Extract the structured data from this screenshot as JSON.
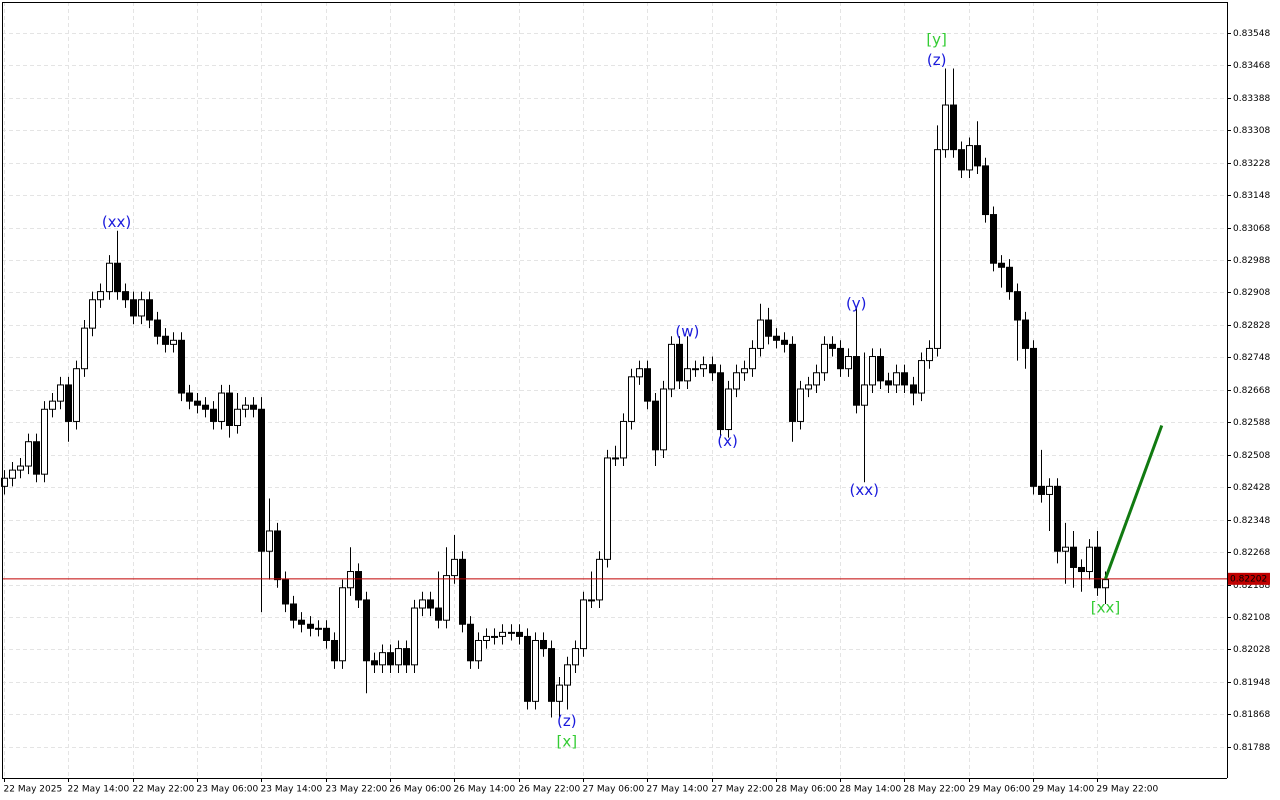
{
  "chart_data": {
    "type": "candlestick",
    "categories": [
      "22 May 2025",
      null,
      null,
      null,
      null,
      null,
      null,
      null,
      "22 May 14:00",
      null,
      null,
      null,
      null,
      null,
      null,
      null,
      "22 May 22:00",
      null,
      null,
      null,
      null,
      null,
      null,
      null,
      "23 May 06:00",
      null,
      null,
      null,
      null,
      null,
      null,
      null,
      "23 May 14:00",
      null,
      null,
      null,
      null,
      null,
      null,
      null,
      "23 May 22:00",
      null,
      null,
      null,
      null,
      null,
      null,
      null,
      "26 May 06:00",
      null,
      null,
      null,
      null,
      null,
      null,
      null,
      "26 May 14:00",
      null,
      null,
      null,
      null,
      null,
      null,
      null,
      "26 May 22:00",
      null,
      null,
      null,
      null,
      null,
      null,
      null,
      "27 May 06:00",
      null,
      null,
      null,
      null,
      null,
      null,
      null,
      "27 May 14:00",
      null,
      null,
      null,
      null,
      null,
      null,
      null,
      "27 May 22:00",
      null,
      null,
      null,
      null,
      null,
      null,
      null,
      "28 May 06:00",
      null,
      null,
      null,
      null,
      null,
      null,
      null,
      "28 May 14:00",
      null,
      null,
      null,
      null,
      null,
      null,
      null,
      "28 May 22:00",
      null,
      null,
      null,
      null,
      null,
      null,
      null,
      "29 May 06:00",
      null,
      null,
      null,
      null,
      null,
      null,
      null,
      "29 May 14:00",
      null,
      null,
      null,
      null,
      null,
      null,
      null,
      "29 May 22:00",
      null
    ],
    "open": [
      0.8243,
      0.8245,
      0.8247,
      0.8248,
      0.8254,
      0.8246,
      0.8262,
      0.8264,
      0.8268,
      0.8259,
      0.8272,
      0.8282,
      0.8289,
      0.8291,
      0.8298,
      0.8291,
      0.8289,
      0.8285,
      0.8289,
      0.8284,
      0.828,
      0.8278,
      0.8279,
      0.8266,
      0.8264,
      0.8263,
      0.8262,
      0.8259,
      0.8266,
      0.8258,
      0.8262,
      0.8263,
      0.8262,
      0.8227,
      0.8232,
      0.822,
      0.8214,
      0.821,
      0.8209,
      0.8208,
      0.8208,
      0.8205,
      0.82,
      0.8218,
      0.8222,
      0.8215,
      0.82,
      0.8199,
      0.8202,
      0.8199,
      0.8203,
      0.8199,
      0.8213,
      0.8215,
      0.8213,
      0.821,
      0.8221,
      0.8225,
      0.8209,
      0.82,
      0.8205,
      0.8206,
      0.8206,
      0.8207,
      0.8207,
      0.8206,
      0.819,
      0.8205,
      0.8203,
      0.819,
      0.8194,
      0.8199,
      0.8203,
      0.8215,
      0.8215,
      0.8225,
      0.825,
      0.825,
      0.8259,
      0.827,
      0.8272,
      0.8264,
      0.8252,
      0.8267,
      0.8278,
      0.8269,
      0.8272,
      0.8272,
      0.8273,
      0.8271,
      0.8257,
      0.8267,
      0.8271,
      0.8272,
      0.8277,
      0.8284,
      0.828,
      0.8279,
      0.8278,
      0.8259,
      0.8267,
      0.8268,
      0.8271,
      0.8278,
      0.8277,
      0.8272,
      0.8275,
      0.8263,
      0.8268,
      0.8275,
      0.8269,
      0.8268,
      0.8271,
      0.8268,
      0.8266,
      0.8274,
      0.8277,
      0.8326,
      0.8337,
      0.8326,
      0.8321,
      0.8327,
      0.8322,
      0.831,
      0.8298,
      0.8297,
      0.8291,
      0.8284,
      0.8277,
      0.8243,
      0.8241,
      0.8243,
      0.8227,
      0.8228,
      0.8223,
      0.8222,
      0.8228,
      0.8218
    ],
    "high": [
      0.8247,
      0.8249,
      0.825,
      0.8256,
      0.8256,
      0.8264,
      0.8266,
      0.827,
      0.827,
      0.8274,
      0.8284,
      0.8291,
      0.8293,
      0.83,
      0.8306,
      0.8293,
      0.8291,
      0.8291,
      0.8291,
      0.8286,
      0.8282,
      0.8281,
      0.8281,
      0.8268,
      0.8266,
      0.8265,
      0.8264,
      0.8268,
      0.8268,
      0.8266,
      0.8265,
      0.8265,
      0.8265,
      0.824,
      0.8234,
      0.8222,
      0.8216,
      0.8212,
      0.8211,
      0.821,
      0.821,
      0.8207,
      0.822,
      0.8228,
      0.8224,
      0.8217,
      0.8202,
      0.8204,
      0.8204,
      0.8205,
      0.8205,
      0.8215,
      0.8217,
      0.8217,
      0.8222,
      0.8228,
      0.8231,
      0.8227,
      0.8211,
      0.8207,
      0.8208,
      0.8208,
      0.8209,
      0.8209,
      0.8209,
      0.8208,
      0.8207,
      0.8207,
      0.8205,
      0.8196,
      0.8201,
      0.8205,
      0.8217,
      0.8222,
      0.8227,
      0.8252,
      0.8253,
      0.8261,
      0.8272,
      0.8274,
      0.8274,
      0.8266,
      0.8269,
      0.828,
      0.828,
      0.828,
      0.8274,
      0.8275,
      0.8275,
      0.8273,
      0.8269,
      0.8273,
      0.8274,
      0.8279,
      0.8288,
      0.8287,
      0.8282,
      0.8281,
      0.828,
      0.8269,
      0.827,
      0.8273,
      0.828,
      0.828,
      0.8279,
      0.8277,
      0.8287,
      0.8276,
      0.8277,
      0.8277,
      0.8271,
      0.8273,
      0.8273,
      0.827,
      0.8276,
      0.8279,
      0.8332,
      0.8346,
      0.8346,
      0.8328,
      0.8329,
      0.8333,
      0.8324,
      0.8312,
      0.83,
      0.8299,
      0.8293,
      0.8286,
      0.8279,
      0.8252,
      0.8245,
      0.8245,
      0.8234,
      0.8232,
      0.8225,
      0.823,
      0.8232,
      0.8222
    ],
    "low": [
      0.8241,
      0.8243,
      0.8245,
      0.8246,
      0.8244,
      0.8244,
      0.826,
      0.8262,
      0.8254,
      0.8257,
      0.827,
      0.828,
      0.8287,
      0.8289,
      0.8289,
      0.8287,
      0.8283,
      0.8283,
      0.8282,
      0.8278,
      0.8276,
      0.8276,
      0.8264,
      0.8262,
      0.8261,
      0.826,
      0.8257,
      0.8257,
      0.8255,
      0.8256,
      0.826,
      0.826,
      0.8212,
      0.822,
      0.8218,
      0.8212,
      0.8208,
      0.8207,
      0.8206,
      0.8206,
      0.8203,
      0.8198,
      0.8198,
      0.8216,
      0.8213,
      0.8192,
      0.8197,
      0.8197,
      0.8197,
      0.8197,
      0.8197,
      0.8197,
      0.8211,
      0.8211,
      0.8208,
      0.8208,
      0.8219,
      0.8207,
      0.8198,
      0.8198,
      0.8203,
      0.8204,
      0.8204,
      0.8205,
      0.8204,
      0.8188,
      0.8188,
      0.8201,
      0.8186,
      0.8186,
      0.8188,
      0.8197,
      0.8201,
      0.8213,
      0.8213,
      0.8223,
      0.8248,
      0.8248,
      0.8257,
      0.8268,
      0.8262,
      0.8248,
      0.825,
      0.8265,
      0.8267,
      0.8267,
      0.827,
      0.827,
      0.8269,
      0.8255,
      0.8255,
      0.8265,
      0.8269,
      0.827,
      0.8275,
      0.8278,
      0.8277,
      0.8276,
      0.8254,
      0.8257,
      0.8265,
      0.8266,
      0.8269,
      0.8275,
      0.827,
      0.827,
      0.8261,
      0.8244,
      0.8266,
      0.8267,
      0.8266,
      0.8266,
      0.8266,
      0.8263,
      0.8264,
      0.8272,
      0.8275,
      0.8324,
      0.8324,
      0.8319,
      0.8319,
      0.832,
      0.8308,
      0.8296,
      0.8292,
      0.8289,
      0.8274,
      0.8272,
      0.8241,
      0.8239,
      0.8232,
      0.8224,
      0.8219,
      0.8218,
      0.8217,
      0.822,
      0.8216,
      0.8214
    ],
    "close": [
      0.8245,
      0.8247,
      0.8248,
      0.8254,
      0.8246,
      0.8262,
      0.8264,
      0.8268,
      0.8259,
      0.8272,
      0.8282,
      0.8289,
      0.8291,
      0.8298,
      0.8291,
      0.8289,
      0.8285,
      0.8289,
      0.8284,
      0.828,
      0.8278,
      0.8279,
      0.8266,
      0.8264,
      0.8263,
      0.8262,
      0.8259,
      0.8266,
      0.8258,
      0.8262,
      0.8263,
      0.8262,
      0.8227,
      0.8232,
      0.822,
      0.8214,
      0.821,
      0.8209,
      0.8208,
      0.8208,
      0.8205,
      0.82,
      0.8218,
      0.8222,
      0.8215,
      0.82,
      0.8199,
      0.8202,
      0.8199,
      0.8203,
      0.8199,
      0.8213,
      0.8215,
      0.8213,
      0.821,
      0.8221,
      0.8225,
      0.8209,
      0.82,
      0.8205,
      0.8206,
      0.8206,
      0.8207,
      0.8207,
      0.8206,
      0.819,
      0.8205,
      0.8203,
      0.819,
      0.8194,
      0.8199,
      0.8203,
      0.8215,
      0.8215,
      0.8225,
      0.825,
      0.825,
      0.8259,
      0.827,
      0.8272,
      0.8264,
      0.8252,
      0.8267,
      0.8278,
      0.8269,
      0.8272,
      0.8272,
      0.8273,
      0.8271,
      0.8257,
      0.8267,
      0.8271,
      0.8272,
      0.8277,
      0.8284,
      0.828,
      0.8279,
      0.8278,
      0.8259,
      0.8267,
      0.8268,
      0.8271,
      0.8278,
      0.8277,
      0.8272,
      0.8275,
      0.8263,
      0.8268,
      0.8275,
      0.8269,
      0.8268,
      0.8271,
      0.8268,
      0.8266,
      0.8274,
      0.8277,
      0.8326,
      0.8337,
      0.8326,
      0.8321,
      0.8327,
      0.8322,
      0.831,
      0.8298,
      0.8297,
      0.8291,
      0.8284,
      0.8277,
      0.8243,
      0.8241,
      0.8243,
      0.8227,
      0.8228,
      0.8223,
      0.8222,
      0.8228,
      0.8218,
      0.822
    ],
    "bull_color": "#ffffff",
    "bear_color": "#000000",
    "ylim": [
      0.81711,
      0.83624
    ],
    "yticks": [
      0.83548,
      0.83468,
      0.83388,
      0.83308,
      0.83228,
      0.83148,
      0.83068,
      0.82988,
      0.82908,
      0.82828,
      0.82748,
      0.82668,
      0.82588,
      0.82508,
      0.82428,
      0.82348,
      0.82268,
      0.82188,
      0.82108,
      0.82028,
      0.81948,
      0.81868,
      0.81788
    ],
    "grid": true,
    "current_price": 0.82202,
    "current_price_color": "#c00000",
    "annotations": [
      {
        "text": "(xx)",
        "x": 14,
        "y": 0.8308,
        "color": "#1a1adc"
      },
      {
        "text": "[y]",
        "x": 116,
        "y": 0.8353,
        "color": "#33cc33"
      },
      {
        "text": "(z)",
        "x": 116,
        "y": 0.8348,
        "color": "#1a1adc"
      },
      {
        "text": "(w)",
        "x": 85,
        "y": 0.8281,
        "color": "#1a1adc"
      },
      {
        "text": "(x)",
        "x": 90,
        "y": 0.8254,
        "color": "#1a1adc"
      },
      {
        "text": "(y)",
        "x": 106,
        "y": 0.8288,
        "color": "#1a1adc"
      },
      {
        "text": "(xx)",
        "x": 107,
        "y": 0.8242,
        "color": "#1a1adc"
      },
      {
        "text": "(z)",
        "x": 70,
        "y": 0.8185,
        "color": "#1a1adc"
      },
      {
        "text": "[x]",
        "x": 70,
        "y": 0.818,
        "color": "#33cc33"
      },
      {
        "text": "[xx]",
        "x": 137,
        "y": 0.8213,
        "color": "#33cc33"
      }
    ],
    "projection": {
      "x": [
        137,
        144
      ],
      "y": [
        0.82202,
        0.8258
      ],
      "color": "#117a11"
    }
  }
}
